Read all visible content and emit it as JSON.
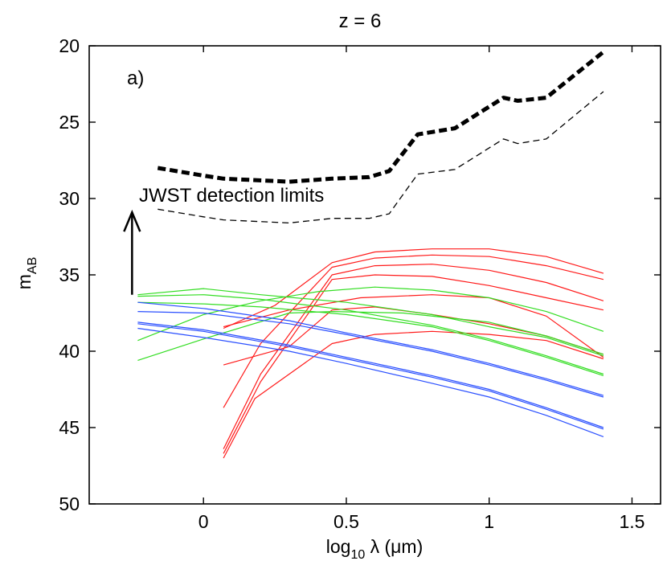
{
  "chart_data": {
    "type": "line",
    "title": "z = 6",
    "xlabel_base": "log",
    "xlabel_sub": "10",
    "xlabel_rest": " λ (μm)",
    "ylabel_base": "m",
    "ylabel_sub": "AB",
    "xlim": [
      -0.4,
      1.6
    ],
    "ylim": [
      50,
      20
    ],
    "y_inverted": true,
    "xticks": [
      0,
      0.5,
      1,
      1.5
    ],
    "xtick_labels": [
      "0",
      "0.5",
      "1",
      "1.5"
    ],
    "yticks": [
      20,
      25,
      30,
      35,
      40,
      45,
      50
    ],
    "ytick_labels": [
      "20",
      "25",
      "30",
      "35",
      "40",
      "45",
      "50"
    ],
    "panel_label": "a)",
    "annotation_text": "JWST detection limits",
    "arrow": {
      "x": -0.25,
      "y_from": 36.3,
      "y_to": 30.9,
      "direction": "up"
    },
    "colors": {
      "limit": "#000000",
      "red": "#ff1a1a",
      "green": "#33dd22",
      "blue": "#2a4fff"
    },
    "series": [
      {
        "name": "JWST limit (thick)",
        "color_key": "limit",
        "style": "thick-dash",
        "points": [
          [
            -0.16,
            28.0
          ],
          [
            0.0,
            28.5
          ],
          [
            0.07,
            28.7
          ],
          [
            0.3,
            28.9
          ],
          [
            0.45,
            28.7
          ],
          [
            0.58,
            28.6
          ],
          [
            0.65,
            28.2
          ],
          [
            0.75,
            25.8
          ],
          [
            0.88,
            25.4
          ],
          [
            1.05,
            23.4
          ],
          [
            1.1,
            23.6
          ],
          [
            1.2,
            23.4
          ],
          [
            1.4,
            20.4
          ]
        ]
      },
      {
        "name": "JWST limit (thin)",
        "color_key": "limit",
        "style": "thin-dash",
        "points": [
          [
            -0.16,
            30.7
          ],
          [
            0.0,
            31.2
          ],
          [
            0.07,
            31.4
          ],
          [
            0.3,
            31.6
          ],
          [
            0.45,
            31.3
          ],
          [
            0.58,
            31.3
          ],
          [
            0.65,
            31.0
          ],
          [
            0.75,
            28.4
          ],
          [
            0.88,
            28.1
          ],
          [
            1.05,
            26.1
          ],
          [
            1.1,
            26.4
          ],
          [
            1.2,
            26.1
          ],
          [
            1.4,
            23.0
          ]
        ]
      },
      {
        "name": "red 1",
        "color_key": "red",
        "style": "solid",
        "points": [
          [
            0.07,
            38.5
          ],
          [
            0.25,
            37.0
          ],
          [
            0.45,
            34.2
          ],
          [
            0.6,
            33.5
          ],
          [
            0.8,
            33.3
          ],
          [
            1.0,
            33.3
          ],
          [
            1.2,
            33.8
          ],
          [
            1.4,
            34.9
          ]
        ]
      },
      {
        "name": "red 2",
        "color_key": "red",
        "style": "solid",
        "points": [
          [
            0.07,
            43.7
          ],
          [
            0.2,
            39.5
          ],
          [
            0.45,
            34.5
          ],
          [
            0.6,
            33.9
          ],
          [
            0.8,
            33.7
          ],
          [
            1.0,
            33.8
          ],
          [
            1.2,
            34.4
          ],
          [
            1.4,
            35.3
          ]
        ]
      },
      {
        "name": "red 3",
        "color_key": "red",
        "style": "solid",
        "points": [
          [
            0.07,
            46.4
          ],
          [
            0.2,
            41.5
          ],
          [
            0.45,
            35.0
          ],
          [
            0.6,
            34.4
          ],
          [
            0.8,
            34.3
          ],
          [
            1.0,
            34.7
          ],
          [
            1.2,
            35.5
          ],
          [
            1.4,
            36.7
          ]
        ]
      },
      {
        "name": "red 4",
        "color_key": "red",
        "style": "solid",
        "points": [
          [
            0.07,
            46.7
          ],
          [
            0.2,
            42.0
          ],
          [
            0.45,
            35.3
          ],
          [
            0.6,
            35.0
          ],
          [
            0.8,
            35.1
          ],
          [
            1.0,
            35.7
          ],
          [
            1.2,
            36.5
          ],
          [
            1.4,
            37.3
          ]
        ]
      },
      {
        "name": "red 5",
        "color_key": "red",
        "style": "solid",
        "points": [
          [
            0.07,
            38.4
          ],
          [
            0.3,
            37.3
          ],
          [
            0.55,
            36.5
          ],
          [
            0.8,
            36.3
          ],
          [
            1.0,
            36.5
          ],
          [
            1.2,
            37.7
          ],
          [
            1.4,
            40.4
          ]
        ]
      },
      {
        "name": "red 6",
        "color_key": "red",
        "style": "solid",
        "points": [
          [
            0.07,
            47.0
          ],
          [
            0.18,
            43.1
          ],
          [
            0.45,
            39.5
          ],
          [
            0.6,
            38.9
          ],
          [
            0.8,
            38.7
          ],
          [
            1.0,
            38.9
          ],
          [
            1.2,
            39.3
          ],
          [
            1.4,
            40.5
          ]
        ]
      },
      {
        "name": "red 7",
        "color_key": "red",
        "style": "solid",
        "points": [
          [
            0.07,
            40.9
          ],
          [
            0.3,
            39.7
          ],
          [
            0.45,
            37.3
          ],
          [
            0.6,
            37.1
          ],
          [
            0.8,
            37.6
          ],
          [
            1.0,
            38.2
          ],
          [
            1.2,
            39.0
          ],
          [
            1.4,
            40.2
          ]
        ]
      },
      {
        "name": "green 1",
        "color_key": "green",
        "style": "solid",
        "points": [
          [
            -0.23,
            36.3
          ],
          [
            0.0,
            35.9
          ],
          [
            0.2,
            36.3
          ],
          [
            0.5,
            36.8
          ],
          [
            0.8,
            37.6
          ],
          [
            1.0,
            38.4
          ],
          [
            1.2,
            39.1
          ],
          [
            1.4,
            40.3
          ]
        ]
      },
      {
        "name": "green 2",
        "color_key": "green",
        "style": "solid",
        "points": [
          [
            -0.23,
            36.4
          ],
          [
            0.0,
            36.3
          ],
          [
            0.2,
            36.6
          ],
          [
            0.5,
            37.3
          ],
          [
            0.8,
            38.3
          ],
          [
            1.0,
            39.2
          ],
          [
            1.2,
            40.3
          ],
          [
            1.4,
            41.5
          ]
        ]
      },
      {
        "name": "green 3",
        "color_key": "green",
        "style": "solid",
        "points": [
          [
            -0.23,
            36.8
          ],
          [
            0.0,
            36.9
          ],
          [
            0.2,
            37.1
          ],
          [
            0.5,
            37.6
          ],
          [
            0.8,
            38.4
          ],
          [
            1.0,
            39.3
          ],
          [
            1.2,
            40.4
          ],
          [
            1.4,
            41.6
          ]
        ]
      },
      {
        "name": "green 4",
        "color_key": "green",
        "style": "solid",
        "points": [
          [
            -0.23,
            39.3
          ],
          [
            0.0,
            37.6
          ],
          [
            0.2,
            36.7
          ],
          [
            0.4,
            36.1
          ],
          [
            0.6,
            35.8
          ],
          [
            0.8,
            36.0
          ],
          [
            1.0,
            36.5
          ],
          [
            1.2,
            37.4
          ],
          [
            1.4,
            38.7
          ]
        ]
      },
      {
        "name": "green 5",
        "color_key": "green",
        "style": "solid",
        "points": [
          [
            -0.23,
            40.6
          ],
          [
            0.0,
            39.2
          ],
          [
            0.3,
            37.5
          ],
          [
            0.45,
            37.4
          ],
          [
            0.7,
            37.5
          ],
          [
            1.0,
            38.1
          ],
          [
            1.2,
            39.0
          ],
          [
            1.4,
            40.2
          ]
        ]
      },
      {
        "name": "blue 1",
        "color_key": "blue",
        "style": "solid",
        "points": [
          [
            -0.23,
            36.8
          ],
          [
            0.0,
            37.2
          ],
          [
            0.3,
            38.0
          ],
          [
            0.5,
            38.8
          ],
          [
            0.8,
            39.9
          ],
          [
            1.0,
            40.8
          ],
          [
            1.2,
            41.8
          ],
          [
            1.4,
            42.9
          ]
        ]
      },
      {
        "name": "blue 2",
        "color_key": "blue",
        "style": "solid",
        "points": [
          [
            -0.23,
            37.4
          ],
          [
            0.0,
            37.5
          ],
          [
            0.3,
            38.2
          ],
          [
            0.5,
            38.9
          ],
          [
            0.8,
            40.0
          ],
          [
            1.0,
            40.9
          ],
          [
            1.2,
            41.9
          ],
          [
            1.4,
            43.0
          ]
        ]
      },
      {
        "name": "blue 3",
        "color_key": "blue",
        "style": "solid",
        "points": [
          [
            -0.23,
            38.1
          ],
          [
            0.0,
            38.6
          ],
          [
            0.3,
            39.6
          ],
          [
            0.5,
            40.4
          ],
          [
            0.8,
            41.6
          ],
          [
            1.0,
            42.5
          ],
          [
            1.2,
            43.7
          ],
          [
            1.4,
            45.0
          ]
        ]
      },
      {
        "name": "blue 4",
        "color_key": "blue",
        "style": "solid",
        "points": [
          [
            -0.23,
            38.2
          ],
          [
            0.0,
            38.7
          ],
          [
            0.3,
            39.7
          ],
          [
            0.5,
            40.5
          ],
          [
            0.8,
            41.7
          ],
          [
            1.0,
            42.6
          ],
          [
            1.2,
            43.8
          ],
          [
            1.4,
            45.1
          ]
        ]
      },
      {
        "name": "blue 5",
        "color_key": "blue",
        "style": "solid",
        "points": [
          [
            -0.23,
            38.5
          ],
          [
            0.0,
            39.1
          ],
          [
            0.3,
            40.0
          ],
          [
            0.5,
            40.8
          ],
          [
            0.8,
            42.1
          ],
          [
            1.0,
            43.0
          ],
          [
            1.2,
            44.2
          ],
          [
            1.4,
            45.6
          ]
        ]
      }
    ]
  }
}
